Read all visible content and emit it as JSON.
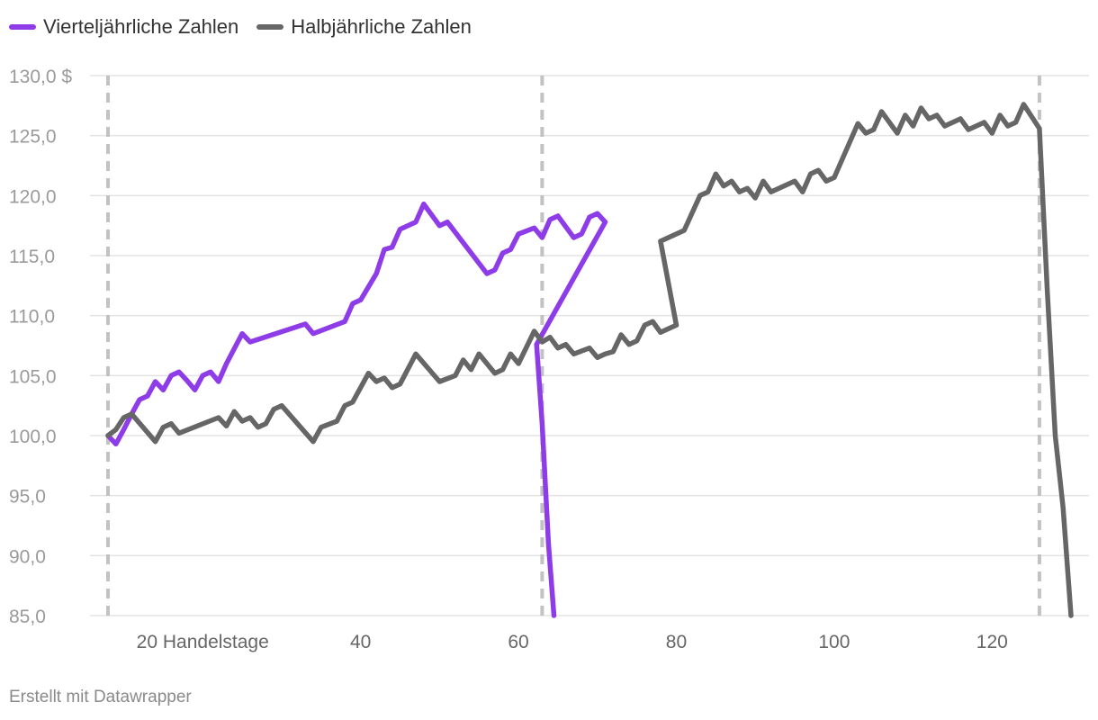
{
  "chart_data": {
    "type": "line",
    "ylim": [
      85,
      130
    ],
    "xlim": [
      8,
      130
    ],
    "y_ticks": [
      {
        "value": 130,
        "label": "130,0 $"
      },
      {
        "value": 125,
        "label": "125,0"
      },
      {
        "value": 120,
        "label": "120,0"
      },
      {
        "value": 115,
        "label": "115,0"
      },
      {
        "value": 110,
        "label": "110,0"
      },
      {
        "value": 105,
        "label": "105,0"
      },
      {
        "value": 100,
        "label": "100,0"
      },
      {
        "value": 95,
        "label": "95,0"
      },
      {
        "value": 90,
        "label": "90,0"
      },
      {
        "value": 85,
        "label": "85,0"
      }
    ],
    "x_ticks": [
      {
        "value": 20,
        "label": "20 Handelstage"
      },
      {
        "value": 40,
        "label": "40"
      },
      {
        "value": 60,
        "label": "60"
      },
      {
        "value": 80,
        "label": "80"
      },
      {
        "value": 100,
        "label": "100"
      },
      {
        "value": 120,
        "label": "120"
      }
    ],
    "vertical_markers": [
      8,
      63,
      126
    ],
    "grid": true,
    "legend_position": "top-left",
    "series": [
      {
        "name": "Vierteljährliche Zahlen",
        "color": "#8e3ce8",
        "points": [
          [
            8,
            100.0
          ],
          [
            9,
            99.3
          ],
          [
            10,
            100.5
          ],
          [
            11,
            101.8
          ],
          [
            12,
            103.0
          ],
          [
            13,
            103.3
          ],
          [
            14,
            104.5
          ],
          [
            15,
            103.8
          ],
          [
            16,
            105.0
          ],
          [
            17,
            105.3
          ],
          [
            18,
            104.6
          ],
          [
            19,
            103.8
          ],
          [
            20,
            105.0
          ],
          [
            21,
            105.3
          ],
          [
            22,
            104.5
          ],
          [
            23,
            106.0
          ],
          [
            25,
            108.5
          ],
          [
            26,
            107.8
          ],
          [
            33,
            109.3
          ],
          [
            34,
            108.5
          ],
          [
            38,
            109.5
          ],
          [
            39,
            111.0
          ],
          [
            40,
            111.3
          ],
          [
            42,
            113.5
          ],
          [
            43,
            115.5
          ],
          [
            44,
            115.7
          ],
          [
            45,
            117.2
          ],
          [
            47,
            117.8
          ],
          [
            48,
            119.3
          ],
          [
            50,
            117.5
          ],
          [
            51,
            117.8
          ],
          [
            56,
            113.5
          ],
          [
            57,
            113.8
          ],
          [
            58,
            115.2
          ],
          [
            59,
            115.5
          ],
          [
            60,
            116.8
          ],
          [
            62,
            117.3
          ],
          [
            63,
            116.5
          ],
          [
            64,
            118.0
          ],
          [
            65,
            118.3
          ],
          [
            67,
            116.5
          ],
          [
            68,
            116.8
          ],
          [
            69,
            118.2
          ],
          [
            70,
            118.5
          ],
          [
            71,
            117.8
          ],
          [
            62.3,
            107.6
          ],
          [
            63,
            101.0
          ],
          [
            63.8,
            91.0
          ],
          [
            64.5,
            85.0
          ]
        ]
      },
      {
        "name": "Halbjährliche Zahlen",
        "color": "#666666",
        "points": [
          [
            8,
            100.0
          ],
          [
            9,
            100.5
          ],
          [
            10,
            101.5
          ],
          [
            11,
            101.8
          ],
          [
            14,
            99.5
          ],
          [
            15,
            100.7
          ],
          [
            16,
            101.0
          ],
          [
            17,
            100.2
          ],
          [
            22,
            101.5
          ],
          [
            23,
            100.8
          ],
          [
            24,
            102.0
          ],
          [
            25,
            101.2
          ],
          [
            26,
            101.5
          ],
          [
            27,
            100.7
          ],
          [
            28,
            101.0
          ],
          [
            29,
            102.2
          ],
          [
            30,
            102.5
          ],
          [
            34,
            99.5
          ],
          [
            35,
            100.7
          ],
          [
            37,
            101.2
          ],
          [
            38,
            102.5
          ],
          [
            39,
            102.8
          ],
          [
            41,
            105.2
          ],
          [
            42,
            104.5
          ],
          [
            43,
            104.8
          ],
          [
            44,
            104.0
          ],
          [
            45,
            104.3
          ],
          [
            47,
            106.8
          ],
          [
            50,
            104.5
          ],
          [
            52,
            105.0
          ],
          [
            53,
            106.3
          ],
          [
            54,
            105.5
          ],
          [
            55,
            106.8
          ],
          [
            57,
            105.2
          ],
          [
            58,
            105.5
          ],
          [
            59,
            106.8
          ],
          [
            60,
            106.0
          ],
          [
            62,
            108.7
          ],
          [
            63,
            107.8
          ],
          [
            64,
            108.2
          ],
          [
            65,
            107.3
          ],
          [
            66,
            107.6
          ],
          [
            67,
            106.8
          ],
          [
            69,
            107.3
          ],
          [
            70,
            106.5
          ],
          [
            71,
            106.8
          ],
          [
            72,
            107.0
          ],
          [
            73,
            108.4
          ],
          [
            74,
            107.6
          ],
          [
            75,
            107.9
          ],
          [
            76,
            109.2
          ],
          [
            77,
            109.5
          ],
          [
            78,
            108.6
          ],
          [
            80,
            109.2
          ],
          [
            78,
            116.2
          ],
          [
            81,
            117.1
          ],
          [
            83,
            120.0
          ],
          [
            84,
            120.3
          ],
          [
            85,
            121.8
          ],
          [
            86,
            120.8
          ],
          [
            87,
            121.2
          ],
          [
            88,
            120.3
          ],
          [
            89,
            120.6
          ],
          [
            90,
            119.8
          ],
          [
            91,
            121.2
          ],
          [
            92,
            120.3
          ],
          [
            95,
            121.2
          ],
          [
            96,
            120.3
          ],
          [
            97,
            121.8
          ],
          [
            98,
            122.1
          ],
          [
            99,
            121.2
          ],
          [
            100,
            121.5
          ],
          [
            103,
            126.0
          ],
          [
            104,
            125.2
          ],
          [
            105,
            125.5
          ],
          [
            106,
            127.0
          ],
          [
            108,
            125.2
          ],
          [
            109,
            126.7
          ],
          [
            110,
            125.8
          ],
          [
            111,
            127.3
          ],
          [
            112,
            126.4
          ],
          [
            113,
            126.7
          ],
          [
            114,
            125.8
          ],
          [
            116,
            126.4
          ],
          [
            117,
            125.5
          ],
          [
            119,
            126.1
          ],
          [
            120,
            125.2
          ],
          [
            121,
            126.7
          ],
          [
            122,
            125.8
          ],
          [
            123,
            126.1
          ],
          [
            124,
            127.6
          ],
          [
            126,
            125.6
          ],
          [
            127,
            112.0
          ],
          [
            128,
            100.0
          ],
          [
            129,
            94.0
          ],
          [
            130,
            85.0
          ]
        ]
      }
    ]
  },
  "footer": {
    "credit": "Erstellt mit Datawrapper"
  }
}
